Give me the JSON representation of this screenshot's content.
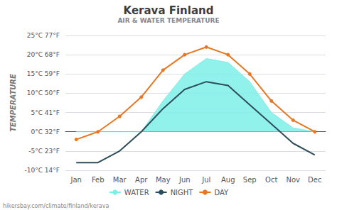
{
  "chart_data": {
    "type": "line",
    "title": "Kerava Finland",
    "subtitle": "AIR & WATER TEMPERATURE",
    "ylabel": "TEMPERATURE",
    "annotation": "hikersbay.com/climate/finland/kerava",
    "categories": [
      "Jan",
      "Feb",
      "Mar",
      "Apr",
      "May",
      "Jun",
      "Jul",
      "Aug",
      "Sep",
      "Oct",
      "Nov",
      "Dec"
    ],
    "series": [
      {
        "name": "WATER",
        "type": "area",
        "color": "#7eeee8",
        "values": [
          0,
          0,
          0,
          0,
          8,
          15,
          19,
          18,
          13,
          5,
          1,
          0
        ]
      },
      {
        "name": "NIGHT",
        "type": "line",
        "color": "#2e4d5a",
        "line_style": "solid",
        "values": [
          -8,
          -8,
          -5,
          0,
          6,
          11,
          13,
          12,
          7,
          2,
          -3,
          -6
        ]
      },
      {
        "name": "DAY",
        "type": "line",
        "color": "#e87722",
        "marker": "circle",
        "line_style": "solid",
        "values": [
          -2,
          0,
          4,
          9,
          16,
          20,
          22,
          20,
          15,
          8,
          3,
          0
        ]
      }
    ],
    "ylim": [
      -10,
      25
    ],
    "yticks": [
      {
        "value": -10,
        "label": "-10°C 14°F"
      },
      {
        "value": -5,
        "label": "-5°C 23°F"
      },
      {
        "value": 0,
        "label": "0°C 32°F"
      },
      {
        "value": 5,
        "label": "5°C 41°F"
      },
      {
        "value": 10,
        "label": "10°C 50°F"
      },
      {
        "value": 15,
        "label": "15°C 59°F"
      },
      {
        "value": 20,
        "label": "20°C 68°F"
      },
      {
        "value": 25,
        "label": "25°C 77°F"
      }
    ],
    "grid": true,
    "legend": "bottom"
  }
}
